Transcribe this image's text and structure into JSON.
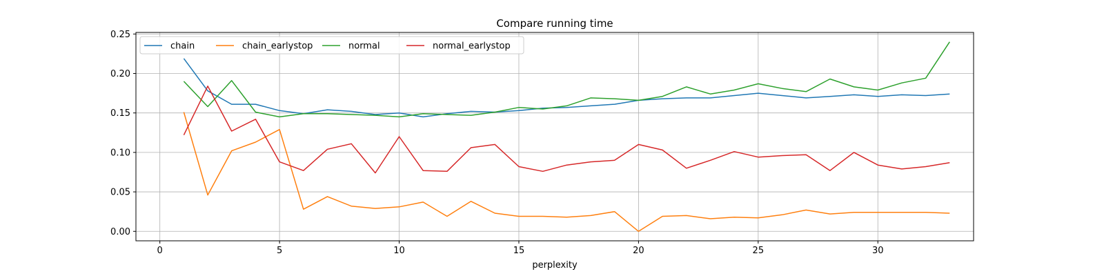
{
  "chart_data": {
    "type": "line",
    "title": "Compare running time",
    "xlabel": "perplexity",
    "ylabel": "",
    "xlim": [
      -1,
      34
    ],
    "ylim": [
      -0.012,
      0.252
    ],
    "xticks": [
      0,
      5,
      10,
      15,
      20,
      25,
      30
    ],
    "yticks": [
      0.0,
      0.05,
      0.1,
      0.15,
      0.2,
      0.25
    ],
    "grid": true,
    "legend": "top-left",
    "x": [
      1,
      2,
      3,
      4,
      5,
      6,
      7,
      8,
      9,
      10,
      11,
      12,
      13,
      14,
      15,
      16,
      17,
      18,
      19,
      20,
      21,
      22,
      23,
      24,
      25,
      26,
      27,
      28,
      29,
      30,
      31,
      32,
      33
    ],
    "series": [
      {
        "name": "chain",
        "color": "#1f77b4",
        "values": [
          0.219,
          0.178,
          0.161,
          0.161,
          0.153,
          0.149,
          0.154,
          0.152,
          0.148,
          0.15,
          0.145,
          0.149,
          0.152,
          0.151,
          0.153,
          0.156,
          0.157,
          0.159,
          0.161,
          0.166,
          0.168,
          0.169,
          0.169,
          0.172,
          0.175,
          0.172,
          0.169,
          0.171,
          0.173,
          0.171,
          0.173,
          0.172,
          0.174
        ]
      },
      {
        "name": "chain_earlystop",
        "color": "#ff7f0e",
        "values": [
          0.151,
          0.046,
          0.102,
          0.113,
          0.129,
          0.028,
          0.044,
          0.032,
          0.029,
          0.031,
          0.037,
          0.019,
          0.038,
          0.023,
          0.019,
          0.019,
          0.018,
          0.02,
          0.025,
          0.0,
          0.019,
          0.02,
          0.016,
          0.018,
          0.017,
          0.021,
          0.027,
          0.022,
          0.024,
          0.024,
          0.024,
          0.024,
          0.023
        ]
      },
      {
        "name": "normal",
        "color": "#2ca02c",
        "values": [
          0.19,
          0.158,
          0.191,
          0.151,
          0.145,
          0.149,
          0.149,
          0.148,
          0.147,
          0.145,
          0.149,
          0.148,
          0.147,
          0.151,
          0.157,
          0.155,
          0.159,
          0.169,
          0.168,
          0.166,
          0.171,
          0.183,
          0.174,
          0.179,
          0.187,
          0.181,
          0.177,
          0.193,
          0.183,
          0.179,
          0.188,
          0.194,
          0.24
        ]
      },
      {
        "name": "normal_earlystop",
        "color": "#d62728",
        "values": [
          0.122,
          0.184,
          0.127,
          0.142,
          0.088,
          0.077,
          0.104,
          0.111,
          0.074,
          0.12,
          0.077,
          0.076,
          0.106,
          0.11,
          0.082,
          0.076,
          0.084,
          0.088,
          0.09,
          0.11,
          0.103,
          0.08,
          0.09,
          0.101,
          0.094,
          0.096,
          0.097,
          0.077,
          0.1,
          0.084,
          0.079,
          0.082,
          0.087
        ]
      }
    ]
  }
}
